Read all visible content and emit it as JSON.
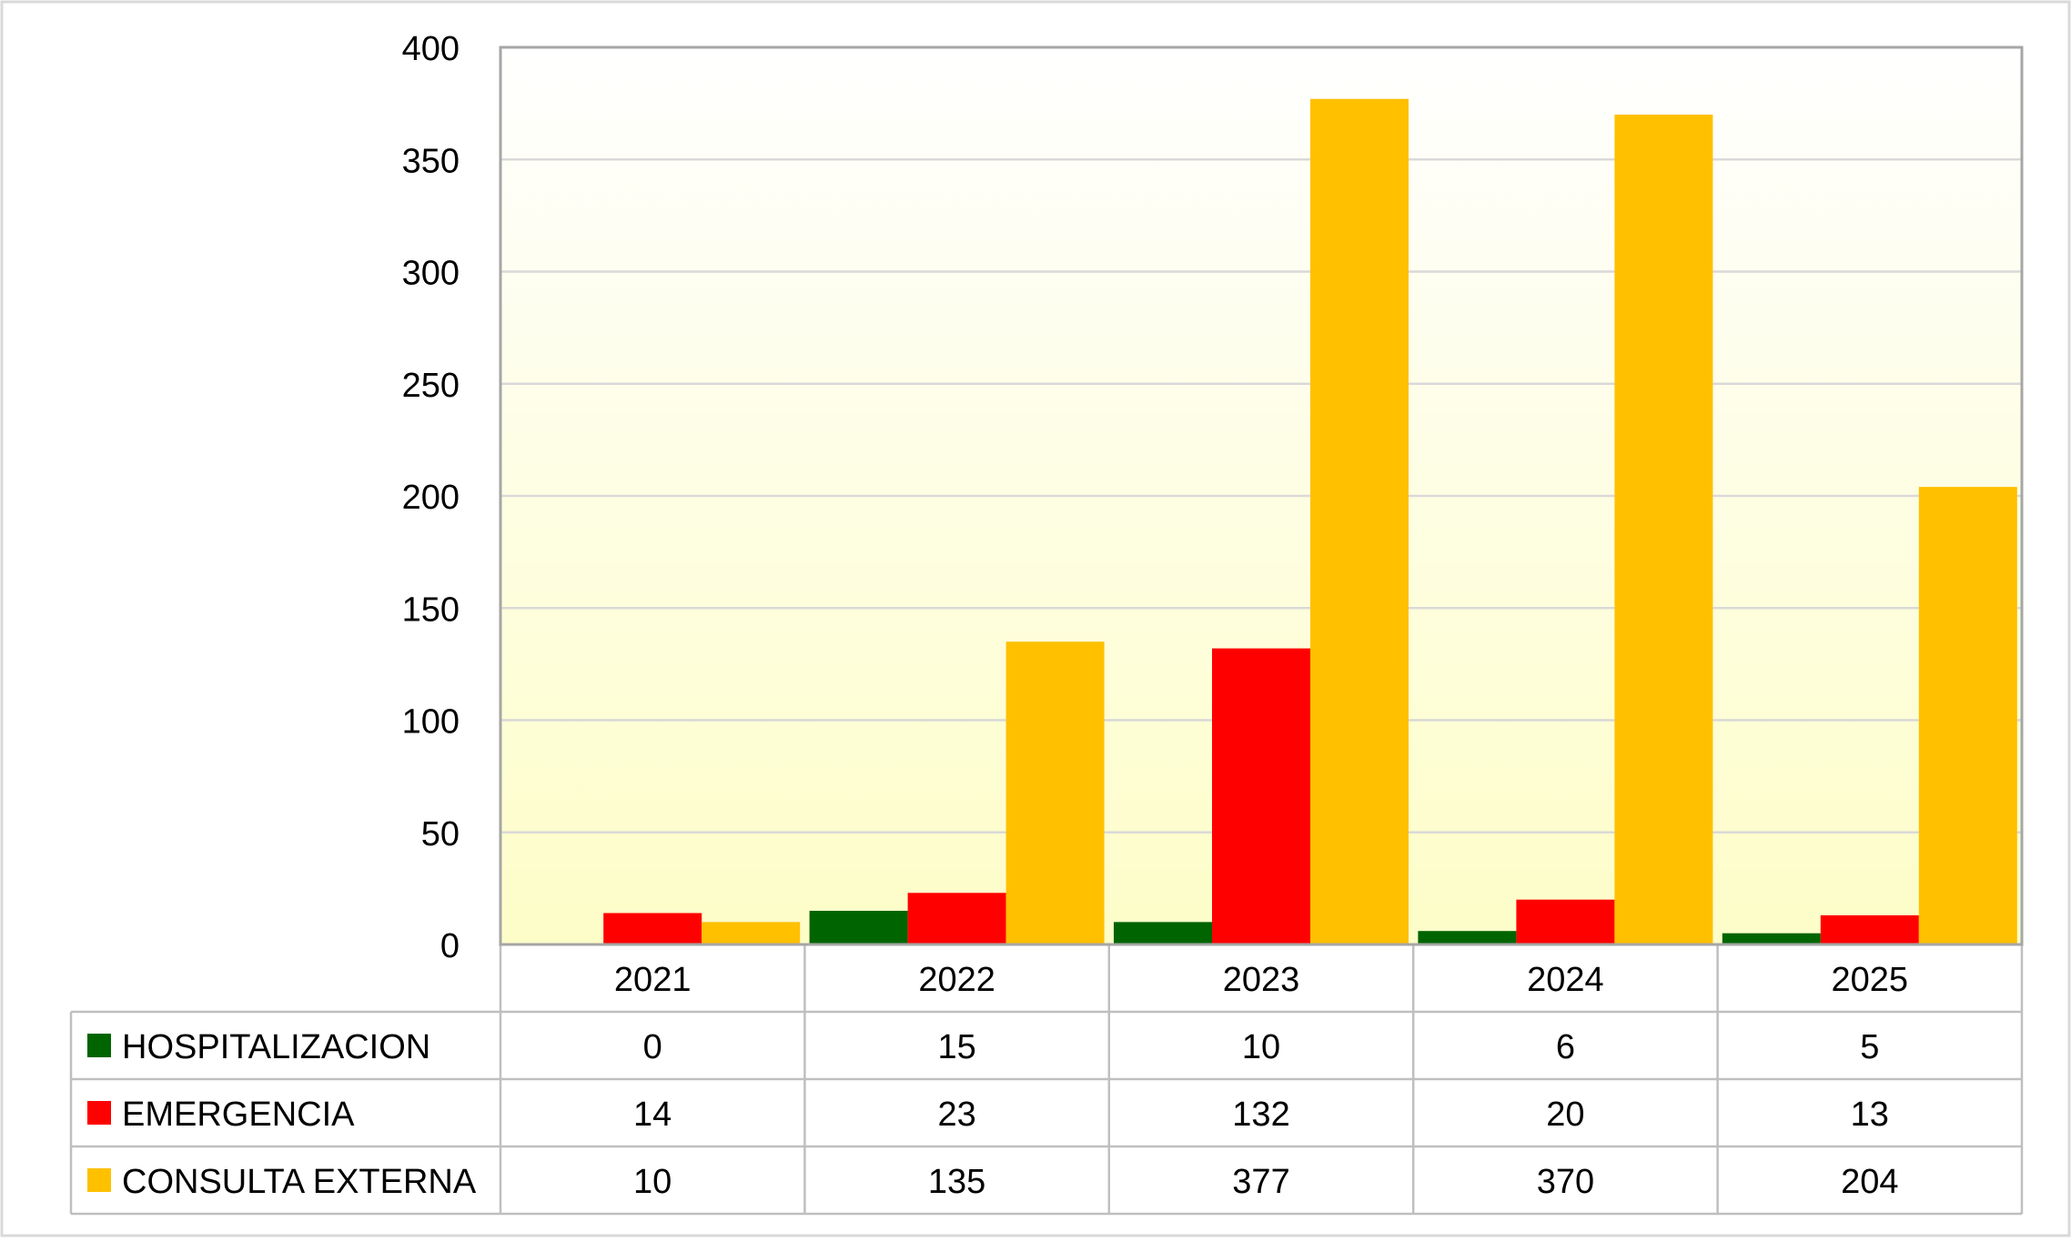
{
  "chart_data": {
    "type": "bar",
    "title": "",
    "xlabel": "",
    "ylabel": "",
    "ylim": [
      0,
      400
    ],
    "yticks": [
      0,
      50,
      100,
      150,
      200,
      250,
      300,
      350,
      400
    ],
    "grid": true,
    "legend": "data-table-left",
    "categories": [
      "2021",
      "2022",
      "2023",
      "2024",
      "2025"
    ],
    "series": [
      {
        "name": "HOSPITALIZACION",
        "color": "#006400",
        "values": [
          0,
          15,
          10,
          6,
          5
        ]
      },
      {
        "name": "EMERGENCIA",
        "color": "#ff0000",
        "values": [
          14,
          23,
          132,
          20,
          13
        ]
      },
      {
        "name": "CONSULTA EXTERNA",
        "color": "#ffc000",
        "values": [
          10,
          135,
          377,
          370,
          204
        ]
      }
    ]
  }
}
